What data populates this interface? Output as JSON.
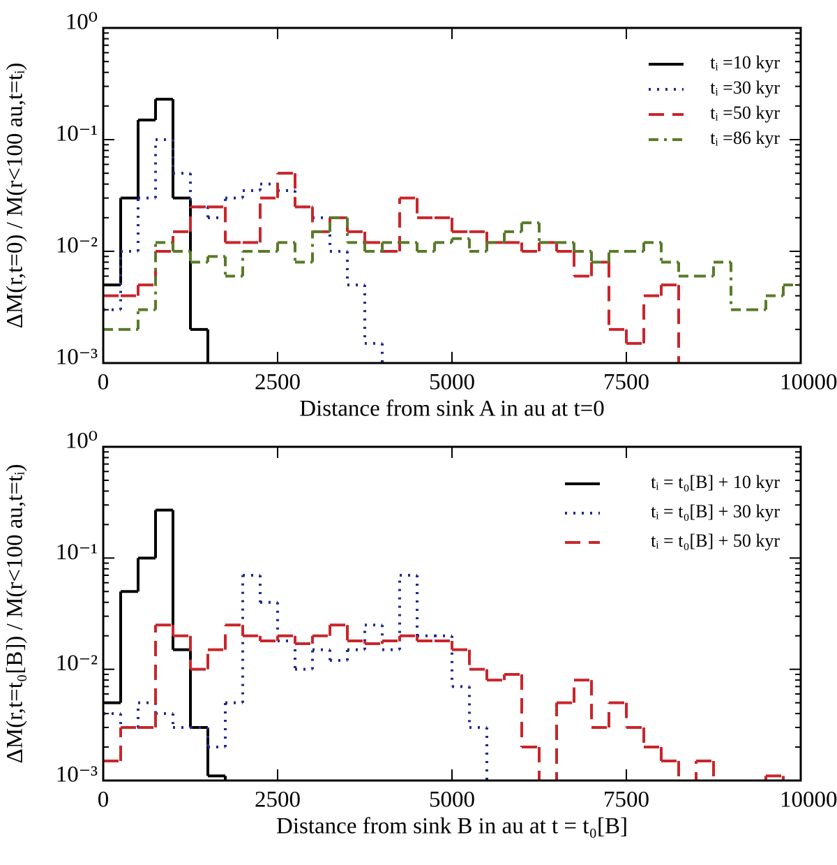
{
  "chart_data": [
    {
      "type": "line",
      "step": true,
      "xlabel": "Distance from sink A in au at t=0",
      "ylabel": "ΔM(r,t=0) / M(r<100 au,t=tᵢ)",
      "xlim": [
        0,
        10000
      ],
      "ylim": [
        0.001,
        1
      ],
      "yscale": "log",
      "xticks": [
        0,
        2500,
        5000,
        7500,
        10000
      ],
      "yticks": [
        {
          "value": 0.001,
          "label": "10⁻³"
        },
        {
          "value": 0.01,
          "label": "10⁻²"
        },
        {
          "value": 0.1,
          "label": "10⁻¹"
        },
        {
          "value": 1,
          "label": "10⁰"
        }
      ],
      "legend": "upper right",
      "x": [
        125,
        375,
        625,
        875,
        1125,
        1375,
        1625,
        1875,
        2125,
        2375,
        2625,
        2875,
        3125,
        3375,
        3625,
        3875,
        4125,
        4375,
        4625,
        4875,
        5125,
        5375,
        5625,
        5875,
        6125,
        6375,
        6625,
        6875,
        7125,
        7375,
        7625,
        7875,
        8125,
        8375,
        8625,
        8875,
        9125,
        9375,
        9625,
        9875
      ],
      "series": [
        {
          "name": "tᵢ =10 kyr",
          "color": "#000000",
          "linestyle": "solid",
          "values": [
            0.005,
            0.03,
            0.15,
            0.23,
            0.03,
            0.002,
            null,
            null,
            null,
            null,
            null,
            null,
            null,
            null,
            null,
            null,
            null,
            null,
            null,
            null,
            null,
            null,
            null,
            null,
            null,
            null,
            null,
            null,
            null,
            null,
            null,
            null,
            null,
            null,
            null,
            null,
            null,
            null,
            null,
            null
          ]
        },
        {
          "name": "tᵢ =30 kyr",
          "color": "#1f2a8c",
          "linestyle": "dotted",
          "values": [
            0.003,
            0.01,
            0.03,
            0.1,
            0.05,
            0.025,
            0.02,
            0.03,
            0.035,
            0.04,
            0.035,
            0.025,
            0.02,
            0.01,
            0.005,
            0.0015,
            null,
            null,
            null,
            null,
            null,
            null,
            null,
            null,
            null,
            null,
            null,
            null,
            null,
            null,
            null,
            null,
            null,
            null,
            null,
            null,
            null,
            null,
            null,
            null
          ]
        },
        {
          "name": "tᵢ =50 kyr",
          "color": "#c8262b",
          "linestyle": "dashed",
          "values": [
            0.004,
            0.004,
            0.005,
            0.01,
            0.015,
            0.025,
            0.025,
            0.012,
            0.012,
            0.03,
            0.05,
            0.025,
            0.015,
            0.02,
            0.015,
            0.012,
            0.01,
            0.03,
            0.02,
            0.02,
            0.015,
            0.015,
            0.012,
            0.012,
            0.01,
            0.012,
            0.01,
            0.006,
            0.008,
            0.002,
            0.0015,
            0.004,
            0.005,
            null,
            null,
            null,
            null,
            null,
            null,
            null
          ]
        },
        {
          "name": "tᵢ =86 kyr",
          "color": "#5a7a2a",
          "linestyle": "dashdot",
          "values": [
            0.002,
            0.002,
            0.003,
            0.012,
            0.01,
            0.008,
            0.009,
            0.006,
            0.01,
            0.01,
            0.012,
            0.008,
            0.015,
            0.02,
            0.012,
            0.01,
            0.012,
            0.012,
            0.01,
            0.012,
            0.013,
            0.01,
            0.012,
            0.015,
            0.018,
            0.012,
            0.012,
            0.01,
            0.008,
            0.01,
            0.01,
            0.012,
            0.008,
            0.006,
            0.006,
            0.008,
            0.003,
            0.003,
            0.004,
            0.005
          ]
        }
      ]
    },
    {
      "type": "line",
      "step": true,
      "xlabel": "Distance from sink B in au at t = t₀[B]",
      "ylabel": "ΔM(r,t=t₀[B]) / M(r<100 au,t=tᵢ)",
      "xlim": [
        0,
        10000
      ],
      "ylim": [
        0.001,
        1
      ],
      "yscale": "log",
      "xticks": [
        0,
        2500,
        5000,
        7500,
        10000
      ],
      "yticks": [
        {
          "value": 0.001,
          "label": "10⁻³"
        },
        {
          "value": 0.01,
          "label": "10⁻²"
        },
        {
          "value": 0.1,
          "label": "10⁻¹"
        },
        {
          "value": 1,
          "label": "10⁰"
        }
      ],
      "legend": "upper right",
      "x": [
        125,
        375,
        625,
        875,
        1125,
        1375,
        1625,
        1875,
        2125,
        2375,
        2625,
        2875,
        3125,
        3375,
        3625,
        3875,
        4125,
        4375,
        4625,
        4875,
        5125,
        5375,
        5625,
        5875,
        6125,
        6375,
        6625,
        6875,
        7125,
        7375,
        7625,
        7875,
        8125,
        8375,
        8625,
        8875,
        9125,
        9375,
        9625,
        9875
      ],
      "series": [
        {
          "name": "tᵢ = t₀[B] + 10 kyr",
          "color": "#000000",
          "linestyle": "solid",
          "values": [
            0.005,
            0.05,
            0.1,
            0.27,
            0.015,
            0.003,
            0.0011,
            null,
            null,
            null,
            null,
            null,
            null,
            null,
            null,
            null,
            null,
            null,
            null,
            null,
            null,
            null,
            null,
            null,
            null,
            null,
            null,
            null,
            null,
            null,
            null,
            null,
            null,
            null,
            null,
            null,
            null,
            null,
            null,
            null
          ]
        },
        {
          "name": "tᵢ = t₀[B] + 30 kyr",
          "color": "#1f2a8c",
          "linestyle": "dotted",
          "values": [
            0.004,
            0.003,
            0.005,
            0.004,
            0.003,
            0.003,
            0.002,
            0.005,
            0.07,
            0.04,
            0.018,
            0.01,
            0.015,
            0.012,
            0.015,
            0.025,
            0.015,
            0.07,
            0.02,
            0.02,
            0.007,
            0.003,
            null,
            null,
            null,
            null,
            null,
            null,
            null,
            null,
            null,
            null,
            null,
            null,
            null,
            null,
            null,
            null,
            null,
            null
          ]
        },
        {
          "name": "tᵢ = t₀[B] + 50 kyr",
          "color": "#c8262b",
          "linestyle": "dashed",
          "values": [
            0.0015,
            0.003,
            0.003,
            0.025,
            0.02,
            0.01,
            0.015,
            0.025,
            0.02,
            0.018,
            0.02,
            0.017,
            0.02,
            0.025,
            0.018,
            0.017,
            0.018,
            0.02,
            0.018,
            0.018,
            0.015,
            0.01,
            0.008,
            0.009,
            0.002,
            null,
            0.005,
            0.008,
            0.003,
            0.005,
            0.003,
            0.002,
            0.0015,
            null,
            0.0015,
            null,
            null,
            null,
            0.0011,
            null
          ]
        }
      ]
    }
  ]
}
